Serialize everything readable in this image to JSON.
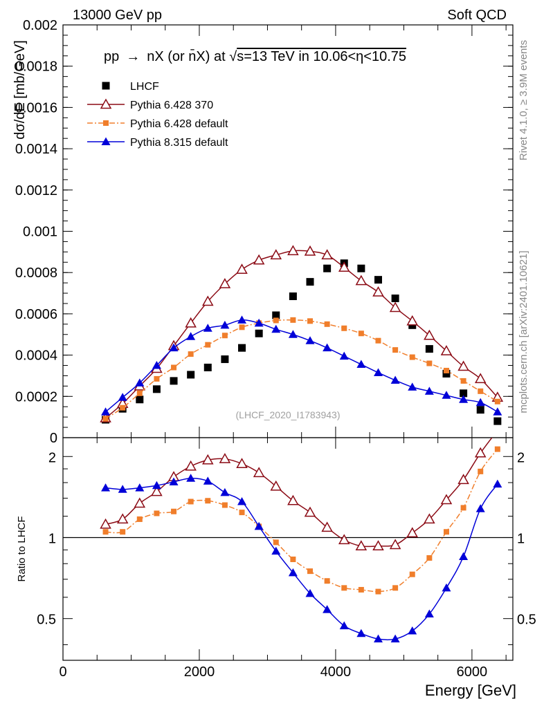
{
  "header": {
    "left": "13000 GeV pp",
    "right": "Soft QCD"
  },
  "side": {
    "rivet": "Rivet 4.1.0, ≥ 3.9M events",
    "mcplots": "mcplots.cern.ch [arXiv:2401.10621]"
  },
  "chart_data": [
    {
      "type": "scatter",
      "panel": "main",
      "title": "pp → nX (or n̄X) at √s=13 TeV in 10.06<η<10.75",
      "title_parts": [
        "pp",
        "→",
        "nX (or ",
        "n̄X) at ",
        "√",
        "s=13 TeV in 10.06<η<10.75"
      ],
      "ylabel": "dσ/dE [mb/GeV]",
      "watermark": "(LHCF_2020_I1783943)",
      "xlim": [
        0,
        6600
      ],
      "ylim": [
        0,
        0.002
      ],
      "yticks": [
        0,
        0.0002,
        0.0004,
        0.0006,
        0.0008,
        0.001,
        0.0012,
        0.0014,
        0.0016,
        0.0018,
        0.002
      ],
      "ytick_labels": [
        "0",
        "0.0002",
        "0.0004",
        "0.0006",
        "0.0008",
        "0.001",
        "0.0012",
        "0.0014",
        "0.0016",
        "0.0018",
        "0.002"
      ],
      "x": [
        625,
        875,
        1125,
        1375,
        1625,
        1875,
        2125,
        2375,
        2625,
        2875,
        3125,
        3375,
        3625,
        3875,
        4125,
        4375,
        4625,
        4875,
        5125,
        5375,
        5625,
        5875,
        6125,
        6375
      ],
      "series": [
        {
          "name": "LHCF",
          "color": "#000000",
          "marker": "square",
          "line": "none",
          "values": [
            8.7e-05,
            0.00014,
            0.000185,
            0.000235,
            0.000275,
            0.000305,
            0.00034,
            0.00038,
            0.000435,
            0.000505,
            0.000593,
            0.000685,
            0.000755,
            0.00082,
            0.000845,
            0.00082,
            0.000765,
            0.000675,
            0.000545,
            0.00043,
            0.00031,
            0.000215,
            0.000135,
            8e-05
          ]
        },
        {
          "name": "Pythia 6.428 370",
          "color": "#8b0a14",
          "marker": "triangle-open",
          "line": "solid",
          "values": [
            9.5e-05,
            0.000165,
            0.00025,
            0.000335,
            0.000445,
            0.000555,
            0.00066,
            0.000745,
            0.000815,
            0.00086,
            0.000885,
            0.000905,
            0.000903,
            0.000885,
            0.000825,
            0.00076,
            0.000705,
            0.00063,
            0.000565,
            0.000495,
            0.00042,
            0.000345,
            0.000285,
            0.000195
          ]
        },
        {
          "name": "Pythia 6.428 default",
          "color": "#f07e2b",
          "marker": "square-small",
          "line": "dashdot",
          "values": [
            9.2e-05,
            0.000145,
            0.000215,
            0.000285,
            0.00034,
            0.000405,
            0.00045,
            0.000495,
            0.000535,
            0.000555,
            0.000568,
            0.00057,
            0.000565,
            0.00055,
            0.00053,
            0.000505,
            0.00047,
            0.000425,
            0.00039,
            0.00036,
            0.000325,
            0.000275,
            0.000225,
            0.000175
          ]
        },
        {
          "name": "Pythia 8.315 default",
          "color": "#0000d8",
          "marker": "triangle",
          "line": "solid",
          "values": [
            0.000125,
            0.000195,
            0.000265,
            0.00035,
            0.000435,
            0.00049,
            0.00053,
            0.000545,
            0.00057,
            0.000555,
            0.000525,
            0.0005,
            0.00047,
            0.000435,
            0.000395,
            0.000355,
            0.000315,
            0.000278,
            0.000245,
            0.000225,
            0.000205,
            0.000185,
            0.00017,
            0.000125
          ]
        }
      ]
    },
    {
      "type": "line",
      "panel": "ratio",
      "ylabel": "Ratio to LHCF",
      "xlabel": "Energy [GeV]",
      "xlim": [
        0,
        6600
      ],
      "ylim": [
        0.35,
        2.35
      ],
      "yscale": "log",
      "yticks": [
        0.5,
        1,
        2
      ],
      "ytick_labels": [
        "0.5",
        "1",
        "2"
      ],
      "xticks": [
        0,
        2000,
        4000,
        6000
      ],
      "xtick_labels": [
        "0",
        "2000",
        "4000",
        "6000"
      ],
      "reference": 1,
      "x": [
        625,
        875,
        1125,
        1375,
        1625,
        1875,
        2125,
        2375,
        2625,
        2875,
        3125,
        3375,
        3625,
        3875,
        4125,
        4375,
        4625,
        4875,
        5125,
        5375,
        5625,
        5875,
        6125,
        6375
      ],
      "series": [
        {
          "name": "Pythia 6.428 370",
          "color": "#8b0a14",
          "marker": "triangle-open",
          "line": "solid",
          "values": [
            1.12,
            1.17,
            1.34,
            1.48,
            1.68,
            1.84,
            1.94,
            1.96,
            1.88,
            1.74,
            1.55,
            1.37,
            1.24,
            1.09,
            0.98,
            0.93,
            0.93,
            0.94,
            1.04,
            1.17,
            1.38,
            1.64,
            2.06,
            2.5
          ]
        },
        {
          "name": "Pythia 6.428 default",
          "color": "#f07e2b",
          "marker": "square-small",
          "line": "dashdot",
          "values": [
            1.05,
            1.05,
            1.17,
            1.23,
            1.25,
            1.36,
            1.37,
            1.32,
            1.24,
            1.1,
            0.96,
            0.83,
            0.75,
            0.69,
            0.65,
            0.64,
            0.63,
            0.65,
            0.73,
            0.84,
            1.05,
            1.29,
            1.76,
            2.13
          ]
        },
        {
          "name": "Pythia 8.315 default",
          "color": "#0000d8",
          "marker": "triangle",
          "line": "solid",
          "values": [
            1.53,
            1.51,
            1.53,
            1.56,
            1.61,
            1.66,
            1.62,
            1.47,
            1.36,
            1.1,
            0.89,
            0.74,
            0.62,
            0.54,
            0.47,
            0.44,
            0.42,
            0.42,
            0.45,
            0.52,
            0.65,
            0.85,
            1.28,
            1.58
          ]
        }
      ]
    }
  ]
}
